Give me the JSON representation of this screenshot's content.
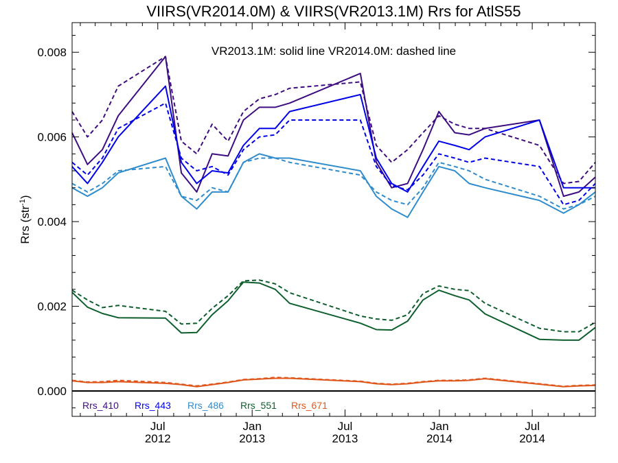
{
  "chart_data": {
    "type": "line",
    "title": "VIIRS(VR2014.0M) & VIIRS(VR2013.1M)  Rrs for AtlS55",
    "annotation": "VR2013.1M: solid line   VR2014.0M: dashed line",
    "ylabel_main": "Rrs (str",
    "ylabel_sup": "-1",
    "ylabel_close": ")",
    "xlabel": "",
    "ylim": [
      -0.0006,
      0.0087
    ],
    "xlim": [
      "2012-01-16",
      "2014-11-01"
    ],
    "grid": false,
    "legend_placement": "bottom-left",
    "y_ticks": [
      "0.000",
      "0.002",
      "0.004",
      "0.006",
      "0.008"
    ],
    "x_ticks": [
      {
        "date": "2012-07-01",
        "line1": "Jul",
        "line2": "2012"
      },
      {
        "date": "2013-01-01",
        "line1": "Jan",
        "line2": "2013"
      },
      {
        "date": "2013-07-01",
        "line1": "Jul",
        "line2": "2013"
      },
      {
        "date": "2014-01-01",
        "line1": "Jan",
        "line2": "2014"
      },
      {
        "date": "2014-07-01",
        "line1": "Jul",
        "line2": "2014"
      }
    ],
    "series": [
      {
        "name": "Rrs_410",
        "color": "#3d0c80",
        "solid": [
          [
            "2012-01-16",
            0.0061
          ],
          [
            "2012-02-15",
            0.00535
          ],
          [
            "2012-03-15",
            0.0057
          ],
          [
            "2012-04-15",
            0.0065
          ],
          [
            "2012-07-16",
            0.0079
          ],
          [
            "2012-08-16",
            0.00515
          ],
          [
            "2012-09-15",
            0.0047
          ],
          [
            "2012-10-15",
            0.0056
          ],
          [
            "2012-11-15",
            0.00555
          ],
          [
            "2012-12-15",
            0.0064
          ],
          [
            "2013-01-15",
            0.0067
          ],
          [
            "2013-02-15",
            0.0067
          ],
          [
            "2013-03-15",
            0.0068
          ],
          [
            "2013-07-31",
            0.0075
          ],
          [
            "2013-08-31",
            0.0054
          ],
          [
            "2013-09-30",
            0.0048
          ],
          [
            "2013-10-31",
            0.0049
          ],
          [
            "2013-11-30",
            0.0057
          ],
          [
            "2013-12-31",
            0.0066
          ],
          [
            "2014-01-31",
            0.0061
          ],
          [
            "2014-02-28",
            0.00605
          ],
          [
            "2014-03-31",
            0.0062
          ],
          [
            "2014-07-15",
            0.0064
          ],
          [
            "2014-08-31",
            0.0046
          ],
          [
            "2014-09-30",
            0.0047
          ],
          [
            "2014-11-01",
            0.00505
          ]
        ],
        "dashed": [
          [
            "2012-01-16",
            0.0066
          ],
          [
            "2012-02-15",
            0.006
          ],
          [
            "2012-03-15",
            0.0064
          ],
          [
            "2012-04-15",
            0.0072
          ],
          [
            "2012-07-16",
            0.0079
          ],
          [
            "2012-08-16",
            0.0059
          ],
          [
            "2012-09-15",
            0.0056
          ],
          [
            "2012-10-15",
            0.0063
          ],
          [
            "2012-11-15",
            0.0059
          ],
          [
            "2012-12-15",
            0.0066
          ],
          [
            "2013-01-15",
            0.0069
          ],
          [
            "2013-02-15",
            0.007
          ],
          [
            "2013-03-15",
            0.00715
          ],
          [
            "2013-07-31",
            0.0073
          ],
          [
            "2013-08-31",
            0.0058
          ],
          [
            "2013-09-30",
            0.0054
          ],
          [
            "2013-10-31",
            0.0057
          ],
          [
            "2013-11-30",
            0.0061
          ],
          [
            "2013-12-31",
            0.0065
          ],
          [
            "2014-01-31",
            0.0063
          ],
          [
            "2014-02-28",
            0.0062
          ],
          [
            "2014-03-31",
            0.0062
          ],
          [
            "2014-07-15",
            0.0058
          ],
          [
            "2014-08-31",
            0.0049
          ],
          [
            "2014-09-30",
            0.00495
          ],
          [
            "2014-11-01",
            0.0054
          ]
        ]
      },
      {
        "name": "Rrs_443",
        "color": "#0000e8",
        "solid": [
          [
            "2012-01-16",
            0.0053
          ],
          [
            "2012-02-15",
            0.0049
          ],
          [
            "2012-03-15",
            0.0054
          ],
          [
            "2012-04-15",
            0.006
          ],
          [
            "2012-07-16",
            0.0072
          ],
          [
            "2012-08-16",
            0.0054
          ],
          [
            "2012-09-15",
            0.0049
          ],
          [
            "2012-10-15",
            0.0052
          ],
          [
            "2012-11-15",
            0.00515
          ],
          [
            "2012-12-15",
            0.0058
          ],
          [
            "2013-01-15",
            0.0062
          ],
          [
            "2013-02-15",
            0.0062
          ],
          [
            "2013-03-15",
            0.0066
          ],
          [
            "2013-07-31",
            0.007
          ],
          [
            "2013-08-31",
            0.0055
          ],
          [
            "2013-09-30",
            0.0049
          ],
          [
            "2013-10-31",
            0.0047
          ],
          [
            "2013-11-30",
            0.0053
          ],
          [
            "2013-12-31",
            0.0059
          ],
          [
            "2014-01-31",
            0.0058
          ],
          [
            "2014-02-28",
            0.0057
          ],
          [
            "2014-03-31",
            0.006
          ],
          [
            "2014-07-15",
            0.0064
          ],
          [
            "2014-08-31",
            0.0048
          ],
          [
            "2014-09-30",
            0.0048
          ],
          [
            "2014-11-01",
            0.0048
          ]
        ],
        "dashed": [
          [
            "2012-01-16",
            0.0054
          ],
          [
            "2012-02-15",
            0.0051
          ],
          [
            "2012-03-15",
            0.0055
          ],
          [
            "2012-04-15",
            0.0062
          ],
          [
            "2012-07-16",
            0.0068
          ],
          [
            "2012-08-16",
            0.0055
          ],
          [
            "2012-09-15",
            0.0052
          ],
          [
            "2012-10-15",
            0.0053
          ],
          [
            "2012-11-15",
            0.0051
          ],
          [
            "2012-12-15",
            0.0057
          ],
          [
            "2013-01-15",
            0.006
          ],
          [
            "2013-02-15",
            0.00605
          ],
          [
            "2013-03-15",
            0.0064
          ],
          [
            "2013-07-31",
            0.0064
          ],
          [
            "2013-08-31",
            0.0053
          ],
          [
            "2013-09-30",
            0.00485
          ],
          [
            "2013-10-31",
            0.00475
          ],
          [
            "2013-11-30",
            0.0051
          ],
          [
            "2013-12-31",
            0.0056
          ],
          [
            "2014-01-31",
            0.0055
          ],
          [
            "2014-02-28",
            0.0054
          ],
          [
            "2014-03-31",
            0.0055
          ],
          [
            "2014-07-15",
            0.0053
          ],
          [
            "2014-08-31",
            0.0044
          ],
          [
            "2014-09-30",
            0.0045
          ],
          [
            "2014-11-01",
            0.0049
          ]
        ]
      },
      {
        "name": "Rrs_486",
        "color": "#2e8bcc",
        "solid": [
          [
            "2012-01-16",
            0.0048
          ],
          [
            "2012-02-15",
            0.0046
          ],
          [
            "2012-03-15",
            0.0048
          ],
          [
            "2012-04-15",
            0.00515
          ],
          [
            "2012-07-16",
            0.0055
          ],
          [
            "2012-08-16",
            0.0046
          ],
          [
            "2012-09-15",
            0.0043
          ],
          [
            "2012-10-15",
            0.0047
          ],
          [
            "2012-11-15",
            0.0047
          ],
          [
            "2012-12-15",
            0.0054
          ],
          [
            "2013-01-15",
            0.0056
          ],
          [
            "2013-02-15",
            0.0055
          ],
          [
            "2013-03-15",
            0.0055
          ],
          [
            "2013-07-31",
            0.0052
          ],
          [
            "2013-08-31",
            0.0046
          ],
          [
            "2013-09-30",
            0.0043
          ],
          [
            "2013-10-31",
            0.0041
          ],
          [
            "2013-11-30",
            0.0047
          ],
          [
            "2013-12-31",
            0.0053
          ],
          [
            "2014-01-31",
            0.0052
          ],
          [
            "2014-02-28",
            0.0049
          ],
          [
            "2014-03-31",
            0.0048
          ],
          [
            "2014-07-15",
            0.0045
          ],
          [
            "2014-08-31",
            0.0042
          ],
          [
            "2014-09-30",
            0.0044
          ],
          [
            "2014-11-01",
            0.0047
          ]
        ],
        "dashed": [
          [
            "2012-01-16",
            0.0049
          ],
          [
            "2012-02-15",
            0.0047
          ],
          [
            "2012-03-15",
            0.0049
          ],
          [
            "2012-04-15",
            0.0052
          ],
          [
            "2012-07-16",
            0.0053
          ],
          [
            "2012-08-16",
            0.0046
          ],
          [
            "2012-09-15",
            0.0045
          ],
          [
            "2012-10-15",
            0.0048
          ],
          [
            "2012-11-15",
            0.0047
          ],
          [
            "2012-12-15",
            0.0054
          ],
          [
            "2013-01-15",
            0.0055
          ],
          [
            "2013-02-15",
            0.0055
          ],
          [
            "2013-03-15",
            0.0054
          ],
          [
            "2013-07-31",
            0.0051
          ],
          [
            "2013-08-31",
            0.0047
          ],
          [
            "2013-09-30",
            0.0045
          ],
          [
            "2013-10-31",
            0.0044
          ],
          [
            "2013-11-30",
            0.0048
          ],
          [
            "2013-12-31",
            0.0054
          ],
          [
            "2014-01-31",
            0.0053
          ],
          [
            "2014-02-28",
            0.0052
          ],
          [
            "2014-03-31",
            0.005
          ],
          [
            "2014-07-15",
            0.0046
          ],
          [
            "2014-08-31",
            0.0043
          ],
          [
            "2014-09-30",
            0.0044
          ],
          [
            "2014-11-01",
            0.0046
          ]
        ]
      },
      {
        "name": "Rrs_551",
        "color": "#0c5e2c",
        "solid": [
          [
            "2012-01-16",
            0.00233
          ],
          [
            "2012-02-15",
            0.00198
          ],
          [
            "2012-03-15",
            0.00183
          ],
          [
            "2012-04-15",
            0.00173
          ],
          [
            "2012-07-16",
            0.00172
          ],
          [
            "2012-08-16",
            0.00137
          ],
          [
            "2012-09-15",
            0.00138
          ],
          [
            "2012-10-15",
            0.0018
          ],
          [
            "2012-11-15",
            0.00213
          ],
          [
            "2012-12-15",
            0.00257
          ],
          [
            "2013-01-15",
            0.00255
          ],
          [
            "2013-02-15",
            0.0024
          ],
          [
            "2013-03-15",
            0.00207
          ],
          [
            "2013-07-31",
            0.0016
          ],
          [
            "2013-08-31",
            0.00145
          ],
          [
            "2013-09-30",
            0.00144
          ],
          [
            "2013-10-31",
            0.00165
          ],
          [
            "2013-11-30",
            0.00215
          ],
          [
            "2013-12-31",
            0.00238
          ],
          [
            "2014-01-31",
            0.00225
          ],
          [
            "2014-02-28",
            0.00215
          ],
          [
            "2014-03-31",
            0.00182
          ],
          [
            "2014-07-15",
            0.00122
          ],
          [
            "2014-08-31",
            0.0012
          ],
          [
            "2014-09-30",
            0.0012
          ],
          [
            "2014-11-01",
            0.0015
          ]
        ],
        "dashed": [
          [
            "2012-01-16",
            0.00238
          ],
          [
            "2012-02-15",
            0.00215
          ],
          [
            "2012-03-15",
            0.00197
          ],
          [
            "2012-04-15",
            0.00202
          ],
          [
            "2012-07-16",
            0.00188
          ],
          [
            "2012-08-16",
            0.00158
          ],
          [
            "2012-09-15",
            0.0016
          ],
          [
            "2012-10-15",
            0.00195
          ],
          [
            "2012-11-15",
            0.00225
          ],
          [
            "2012-12-15",
            0.0026
          ],
          [
            "2013-01-15",
            0.00262
          ],
          [
            "2013-02-15",
            0.00253
          ],
          [
            "2013-03-15",
            0.00232
          ],
          [
            "2013-07-31",
            0.00177
          ],
          [
            "2013-08-31",
            0.0017
          ],
          [
            "2013-09-30",
            0.00167
          ],
          [
            "2013-10-31",
            0.0018
          ],
          [
            "2013-11-30",
            0.0023
          ],
          [
            "2013-12-31",
            0.00248
          ],
          [
            "2014-01-31",
            0.0024
          ],
          [
            "2014-02-28",
            0.00237
          ],
          [
            "2014-03-31",
            0.00207
          ],
          [
            "2014-07-15",
            0.00148
          ],
          [
            "2014-08-31",
            0.0014
          ],
          [
            "2014-09-30",
            0.0014
          ],
          [
            "2014-11-01",
            0.00162
          ]
        ]
      },
      {
        "name": "Rrs_671",
        "color": "#e0561a",
        "solid": [
          [
            "2012-01-16",
            0.00024
          ],
          [
            "2012-02-15",
            0.0002
          ],
          [
            "2012-03-15",
            0.0002
          ],
          [
            "2012-04-15",
            0.00022
          ],
          [
            "2012-07-16",
            0.00018
          ],
          [
            "2012-08-16",
            0.00015
          ],
          [
            "2012-09-15",
            0.0001
          ],
          [
            "2012-10-15",
            0.00015
          ],
          [
            "2012-11-15",
            0.0002
          ],
          [
            "2012-12-15",
            0.00026
          ],
          [
            "2013-01-15",
            0.00028
          ],
          [
            "2013-02-15",
            0.0003
          ],
          [
            "2013-03-15",
            0.0003
          ],
          [
            "2013-07-31",
            0.00022
          ],
          [
            "2013-08-31",
            0.00017
          ],
          [
            "2013-09-30",
            0.00015
          ],
          [
            "2013-10-31",
            0.00017
          ],
          [
            "2013-11-30",
            0.00021
          ],
          [
            "2013-12-31",
            0.00024
          ],
          [
            "2014-01-31",
            0.00024
          ],
          [
            "2014-02-28",
            0.00025
          ],
          [
            "2014-03-31",
            0.00029
          ],
          [
            "2014-07-15",
            0.00016
          ],
          [
            "2014-08-31",
            0.0001
          ],
          [
            "2014-09-30",
            0.00012
          ],
          [
            "2014-11-01",
            0.00013
          ]
        ],
        "dashed": [
          [
            "2012-01-16",
            0.00025
          ],
          [
            "2012-02-15",
            0.00021
          ],
          [
            "2012-03-15",
            0.00022
          ],
          [
            "2012-04-15",
            0.00025
          ],
          [
            "2012-07-16",
            0.0002
          ],
          [
            "2012-08-16",
            0.00016
          ],
          [
            "2012-09-15",
            0.00012
          ],
          [
            "2012-10-15",
            0.00016
          ],
          [
            "2012-11-15",
            0.00021
          ],
          [
            "2012-12-15",
            0.00027
          ],
          [
            "2013-01-15",
            0.00029
          ],
          [
            "2013-02-15",
            0.00032
          ],
          [
            "2013-03-15",
            0.00031
          ],
          [
            "2013-07-31",
            0.00023
          ],
          [
            "2013-08-31",
            0.00018
          ],
          [
            "2013-09-30",
            0.00016
          ],
          [
            "2013-10-31",
            0.00018
          ],
          [
            "2013-11-30",
            0.00022
          ],
          [
            "2013-12-31",
            0.00025
          ],
          [
            "2014-01-31",
            0.00025
          ],
          [
            "2014-02-28",
            0.00026
          ],
          [
            "2014-03-31",
            0.0003
          ],
          [
            "2014-07-15",
            0.00017
          ],
          [
            "2014-08-31",
            0.00011
          ],
          [
            "2014-09-30",
            0.00013
          ],
          [
            "2014-11-01",
            0.00014
          ]
        ]
      }
    ]
  }
}
